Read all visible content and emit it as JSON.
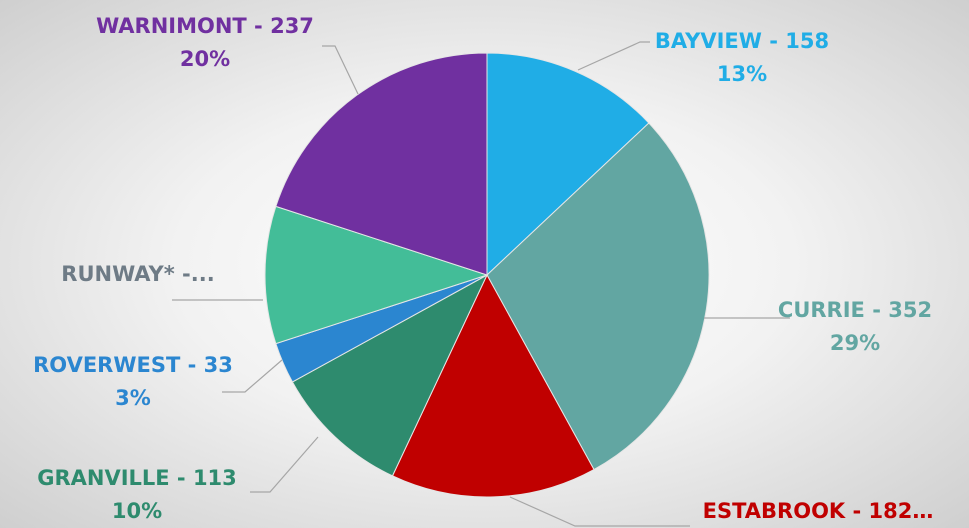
{
  "chart_data": {
    "type": "pie",
    "categories": [
      "BAYVIEW - 158",
      "CURRIE - 352",
      "ESTABROOK - 182…",
      "GRANVILLE - 113",
      "ROVERWEST - 33",
      "RUNWAY* -...",
      "WARNIMONT - 237"
    ],
    "values": [
      13,
      29,
      15,
      10,
      3,
      10,
      20
    ],
    "value_labels": [
      "13%",
      "29%",
      null,
      "10%",
      "3%",
      null,
      "20%"
    ],
    "colors": [
      "#20ade6",
      "#62a6a2",
      "#c00000",
      "#2e8b6e",
      "#2b86d0",
      "#43bd98",
      "#7030a0"
    ],
    "label_colors": [
      "#20ade6",
      "#62a6a2",
      "#c00000",
      "#2e8b6e",
      "#2b86d0",
      "#6e7b86",
      "#7030a0"
    ]
  }
}
